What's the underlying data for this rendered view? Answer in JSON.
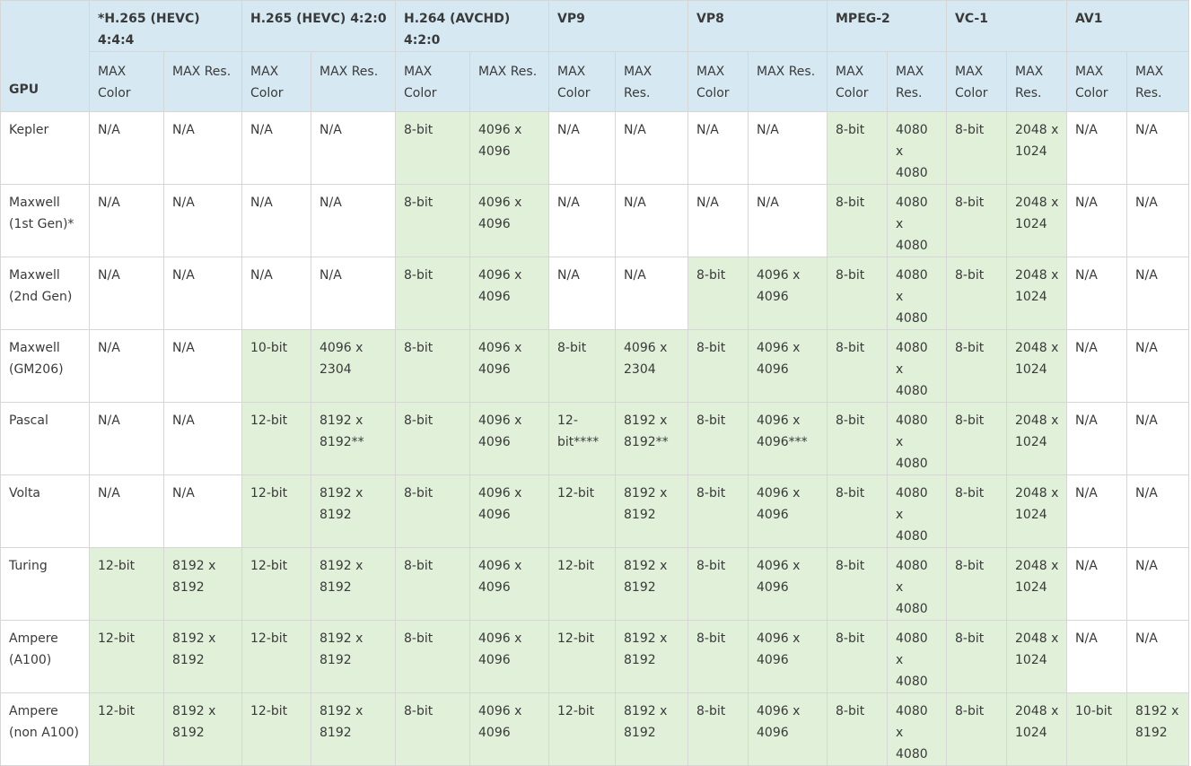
{
  "table": {
    "gpu_header": "GPU",
    "codecs": [
      "*H.265 (HEVC) 4:4:4",
      "H.265 (HEVC) 4:2:0",
      "H.264 (AVCHD) 4:2:0",
      "VP9",
      "VP8",
      "MPEG-2",
      "VC-1",
      "AV1"
    ],
    "subheaders": [
      "MAX Color",
      "MAX Res.",
      "MAX Color",
      "MAX Res.",
      "MAX Color",
      "MAX Res.",
      "MAX Color",
      "MAX Res.",
      "MAX Color",
      "MAX Res.",
      "MAX Color",
      "MAX Res.",
      "MAX Color",
      "MAX Res.",
      "MAX Color",
      "MAX Res."
    ],
    "rows": [
      {
        "gpu": "Kepler",
        "cells": [
          {
            "v": "N/A",
            "s": false
          },
          {
            "v": "N/A",
            "s": false
          },
          {
            "v": "N/A",
            "s": false
          },
          {
            "v": "N/A",
            "s": false
          },
          {
            "v": "8-bit",
            "s": true
          },
          {
            "v": "4096 x 4096",
            "s": true
          },
          {
            "v": "N/A",
            "s": false
          },
          {
            "v": "N/A",
            "s": false
          },
          {
            "v": "N/A",
            "s": false
          },
          {
            "v": "N/A",
            "s": false
          },
          {
            "v": "8-bit",
            "s": true
          },
          {
            "v": "4080 x 4080",
            "s": true
          },
          {
            "v": "8-bit",
            "s": true
          },
          {
            "v": "2048 x 1024",
            "s": true
          },
          {
            "v": "N/A",
            "s": false
          },
          {
            "v": "N/A",
            "s": false
          }
        ]
      },
      {
        "gpu": "Maxwell (1st Gen)*",
        "cells": [
          {
            "v": "N/A",
            "s": false
          },
          {
            "v": "N/A",
            "s": false
          },
          {
            "v": "N/A",
            "s": false
          },
          {
            "v": "N/A",
            "s": false
          },
          {
            "v": "8-bit",
            "s": true
          },
          {
            "v": "4096 x 4096",
            "s": true
          },
          {
            "v": "N/A",
            "s": false
          },
          {
            "v": "N/A",
            "s": false
          },
          {
            "v": "N/A",
            "s": false
          },
          {
            "v": "N/A",
            "s": false
          },
          {
            "v": "8-bit",
            "s": true
          },
          {
            "v": "4080 x 4080",
            "s": true
          },
          {
            "v": "8-bit",
            "s": true
          },
          {
            "v": "2048 x 1024",
            "s": true
          },
          {
            "v": "N/A",
            "s": false
          },
          {
            "v": "N/A",
            "s": false
          }
        ]
      },
      {
        "gpu": "Maxwell (2nd Gen)",
        "cells": [
          {
            "v": "N/A",
            "s": false
          },
          {
            "v": "N/A",
            "s": false
          },
          {
            "v": "N/A",
            "s": false
          },
          {
            "v": "N/A",
            "s": false
          },
          {
            "v": "8-bit",
            "s": true
          },
          {
            "v": "4096 x 4096",
            "s": true
          },
          {
            "v": "N/A",
            "s": false
          },
          {
            "v": "N/A",
            "s": false
          },
          {
            "v": "8-bit",
            "s": true
          },
          {
            "v": "4096 x 4096",
            "s": true
          },
          {
            "v": "8-bit",
            "s": true
          },
          {
            "v": "4080 x 4080",
            "s": true
          },
          {
            "v": "8-bit",
            "s": true
          },
          {
            "v": "2048 x 1024",
            "s": true
          },
          {
            "v": "N/A",
            "s": false
          },
          {
            "v": "N/A",
            "s": false
          }
        ]
      },
      {
        "gpu": "Maxwell (GM206)",
        "cells": [
          {
            "v": "N/A",
            "s": false
          },
          {
            "v": "N/A",
            "s": false
          },
          {
            "v": "10-bit",
            "s": true
          },
          {
            "v": "4096 x 2304",
            "s": true
          },
          {
            "v": "8-bit",
            "s": true
          },
          {
            "v": "4096 x 4096",
            "s": true
          },
          {
            "v": "8-bit",
            "s": true
          },
          {
            "v": "4096 x 2304",
            "s": true
          },
          {
            "v": "8-bit",
            "s": true
          },
          {
            "v": "4096 x 4096",
            "s": true
          },
          {
            "v": "8-bit",
            "s": true
          },
          {
            "v": "4080 x 4080",
            "s": true
          },
          {
            "v": "8-bit",
            "s": true
          },
          {
            "v": "2048 x 1024",
            "s": true
          },
          {
            "v": "N/A",
            "s": false
          },
          {
            "v": "N/A",
            "s": false
          }
        ]
      },
      {
        "gpu": "Pascal",
        "cells": [
          {
            "v": "N/A",
            "s": false
          },
          {
            "v": "N/A",
            "s": false
          },
          {
            "v": "12-bit",
            "s": true
          },
          {
            "v": "8192 x 8192**",
            "s": true
          },
          {
            "v": "8-bit",
            "s": true
          },
          {
            "v": "4096 x 4096",
            "s": true
          },
          {
            "v": "12-bit****",
            "s": true
          },
          {
            "v": "8192 x 8192**",
            "s": true
          },
          {
            "v": "8-bit",
            "s": true
          },
          {
            "v": "4096 x 4096***",
            "s": true
          },
          {
            "v": "8-bit",
            "s": true
          },
          {
            "v": "4080 x 4080",
            "s": true
          },
          {
            "v": "8-bit",
            "s": true
          },
          {
            "v": "2048 x 1024",
            "s": true
          },
          {
            "v": "N/A",
            "s": false
          },
          {
            "v": "N/A",
            "s": false
          }
        ]
      },
      {
        "gpu": "Volta",
        "cells": [
          {
            "v": "N/A",
            "s": false
          },
          {
            "v": "N/A",
            "s": false
          },
          {
            "v": "12-bit",
            "s": true
          },
          {
            "v": "8192 x 8192",
            "s": true
          },
          {
            "v": "8-bit",
            "s": true
          },
          {
            "v": "4096 x 4096",
            "s": true
          },
          {
            "v": "12-bit",
            "s": true
          },
          {
            "v": "8192 x 8192",
            "s": true
          },
          {
            "v": "8-bit",
            "s": true
          },
          {
            "v": "4096 x 4096",
            "s": true
          },
          {
            "v": "8-bit",
            "s": true
          },
          {
            "v": "4080 x 4080",
            "s": true
          },
          {
            "v": "8-bit",
            "s": true
          },
          {
            "v": "2048 x 1024",
            "s": true
          },
          {
            "v": "N/A",
            "s": false
          },
          {
            "v": "N/A",
            "s": false
          }
        ]
      },
      {
        "gpu": "Turing",
        "cells": [
          {
            "v": "12-bit",
            "s": true
          },
          {
            "v": "8192 x 8192",
            "s": true
          },
          {
            "v": "12-bit",
            "s": true
          },
          {
            "v": "8192 x 8192",
            "s": true
          },
          {
            "v": "8-bit",
            "s": true
          },
          {
            "v": "4096 x 4096",
            "s": true
          },
          {
            "v": "12-bit",
            "s": true
          },
          {
            "v": "8192 x 8192",
            "s": true
          },
          {
            "v": "8-bit",
            "s": true
          },
          {
            "v": "4096 x 4096",
            "s": true
          },
          {
            "v": "8-bit",
            "s": true
          },
          {
            "v": "4080 x 4080",
            "s": true
          },
          {
            "v": "8-bit",
            "s": true
          },
          {
            "v": "2048 x 1024",
            "s": true
          },
          {
            "v": "N/A",
            "s": false
          },
          {
            "v": "N/A",
            "s": false
          }
        ]
      },
      {
        "gpu": "Ampere (A100)",
        "cells": [
          {
            "v": "12-bit",
            "s": true
          },
          {
            "v": "8192 x 8192",
            "s": true
          },
          {
            "v": "12-bit",
            "s": true
          },
          {
            "v": "8192 x 8192",
            "s": true
          },
          {
            "v": "8-bit",
            "s": true
          },
          {
            "v": "4096 x 4096",
            "s": true
          },
          {
            "v": "12-bit",
            "s": true
          },
          {
            "v": "8192 x 8192",
            "s": true
          },
          {
            "v": "8-bit",
            "s": true
          },
          {
            "v": "4096 x 4096",
            "s": true
          },
          {
            "v": "8-bit",
            "s": true
          },
          {
            "v": "4080 x 4080",
            "s": true
          },
          {
            "v": "8-bit",
            "s": true
          },
          {
            "v": "2048 x 1024",
            "s": true
          },
          {
            "v": "N/A",
            "s": false
          },
          {
            "v": "N/A",
            "s": false
          }
        ]
      },
      {
        "gpu": "Ampere (non A100)",
        "cells": [
          {
            "v": "12-bit",
            "s": true
          },
          {
            "v": "8192 x 8192",
            "s": true
          },
          {
            "v": "12-bit",
            "s": true
          },
          {
            "v": "8192 x 8192",
            "s": true
          },
          {
            "v": "8-bit",
            "s": true
          },
          {
            "v": "4096 x 4096",
            "s": true
          },
          {
            "v": "12-bit",
            "s": true
          },
          {
            "v": "8192 x 8192",
            "s": true
          },
          {
            "v": "8-bit",
            "s": true
          },
          {
            "v": "4096 x 4096",
            "s": true
          },
          {
            "v": "8-bit",
            "s": true
          },
          {
            "v": "4080 x 4080",
            "s": true
          },
          {
            "v": "8-bit",
            "s": true
          },
          {
            "v": "2048 x 1024",
            "s": true
          },
          {
            "v": "10-bit",
            "s": true
          },
          {
            "v": "8192 x 8192",
            "s": true
          }
        ]
      }
    ]
  },
  "colors": {
    "header_bg": "#d6e9f3",
    "supported_bg": "#e0f0d9",
    "unsupported_bg": "#ffffff",
    "border": "#d6d6d6",
    "text": "#3a3a3a"
  }
}
